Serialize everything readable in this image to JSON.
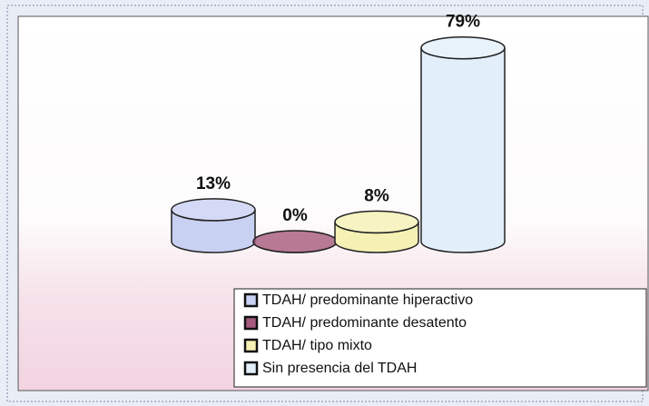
{
  "chart_data": {
    "type": "cylinder",
    "categories": [
      "TDAH/ predominante hiperactivo",
      "TDAH/ predominante desatento",
      "TDAH/ tipo mixto",
      "Sin presencia del TDAH"
    ],
    "values": [
      13,
      0,
      8,
      79
    ],
    "value_labels": [
      "13%",
      "0%",
      "8%",
      "79%"
    ],
    "colors": [
      "#c9d1f2",
      "#a65a7c",
      "#f5f1b4",
      "#e2effa"
    ],
    "legend": "bottom-right"
  }
}
